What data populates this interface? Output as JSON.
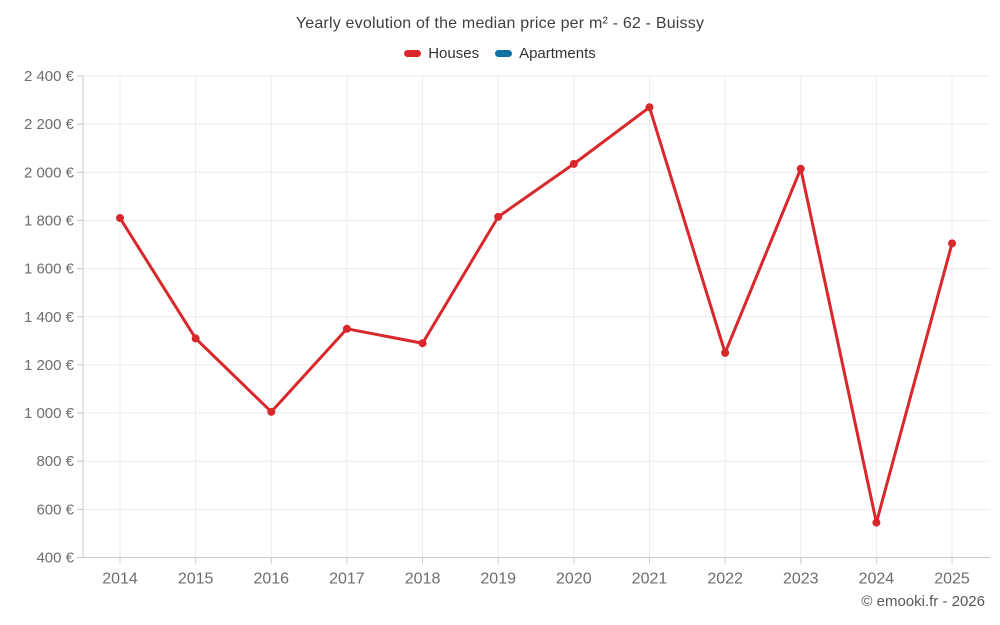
{
  "chart": {
    "title": "Yearly evolution of the median price per m² - 62 - Buissy"
  },
  "legend": {
    "items": [
      {
        "label": "Houses",
        "color": "#d9282b"
      },
      {
        "label": "Apartments",
        "color": "#1172a2"
      }
    ]
  },
  "footer": {
    "credit": "© emooki.fr - 2026"
  },
  "chart_data": {
    "type": "line",
    "title": "Yearly evolution of the median price per m² - 62 - Buissy",
    "xlabel": "",
    "ylabel": "",
    "categories": [
      "2014",
      "2015",
      "2016",
      "2017",
      "2018",
      "2019",
      "2020",
      "2021",
      "2022",
      "2023",
      "2024",
      "2025"
    ],
    "series": [
      {
        "name": "Houses",
        "color": "#d9282b",
        "values": [
          1810,
          1310,
          1005,
          1350,
          1290,
          1815,
          2035,
          2270,
          1250,
          2015,
          545,
          1705
        ]
      },
      {
        "name": "Apartments",
        "color": "#1172a2",
        "values": []
      }
    ],
    "ylim": [
      400,
      2400
    ],
    "y_ticks": [
      {
        "value": 400,
        "label": "400 €"
      },
      {
        "value": 600,
        "label": "600 €"
      },
      {
        "value": 800,
        "label": "800 €"
      },
      {
        "value": 1000,
        "label": "1 000 €"
      },
      {
        "value": 1200,
        "label": "1 200 €"
      },
      {
        "value": 1400,
        "label": "1 400 €"
      },
      {
        "value": 1600,
        "label": "1 600 €"
      },
      {
        "value": 1800,
        "label": "1 800 €"
      },
      {
        "value": 2000,
        "label": "2 000 €"
      },
      {
        "value": 2200,
        "label": "2 200 €"
      },
      {
        "value": 2400,
        "label": "2 400 €"
      }
    ],
    "grid": true,
    "legend_position": "top"
  }
}
